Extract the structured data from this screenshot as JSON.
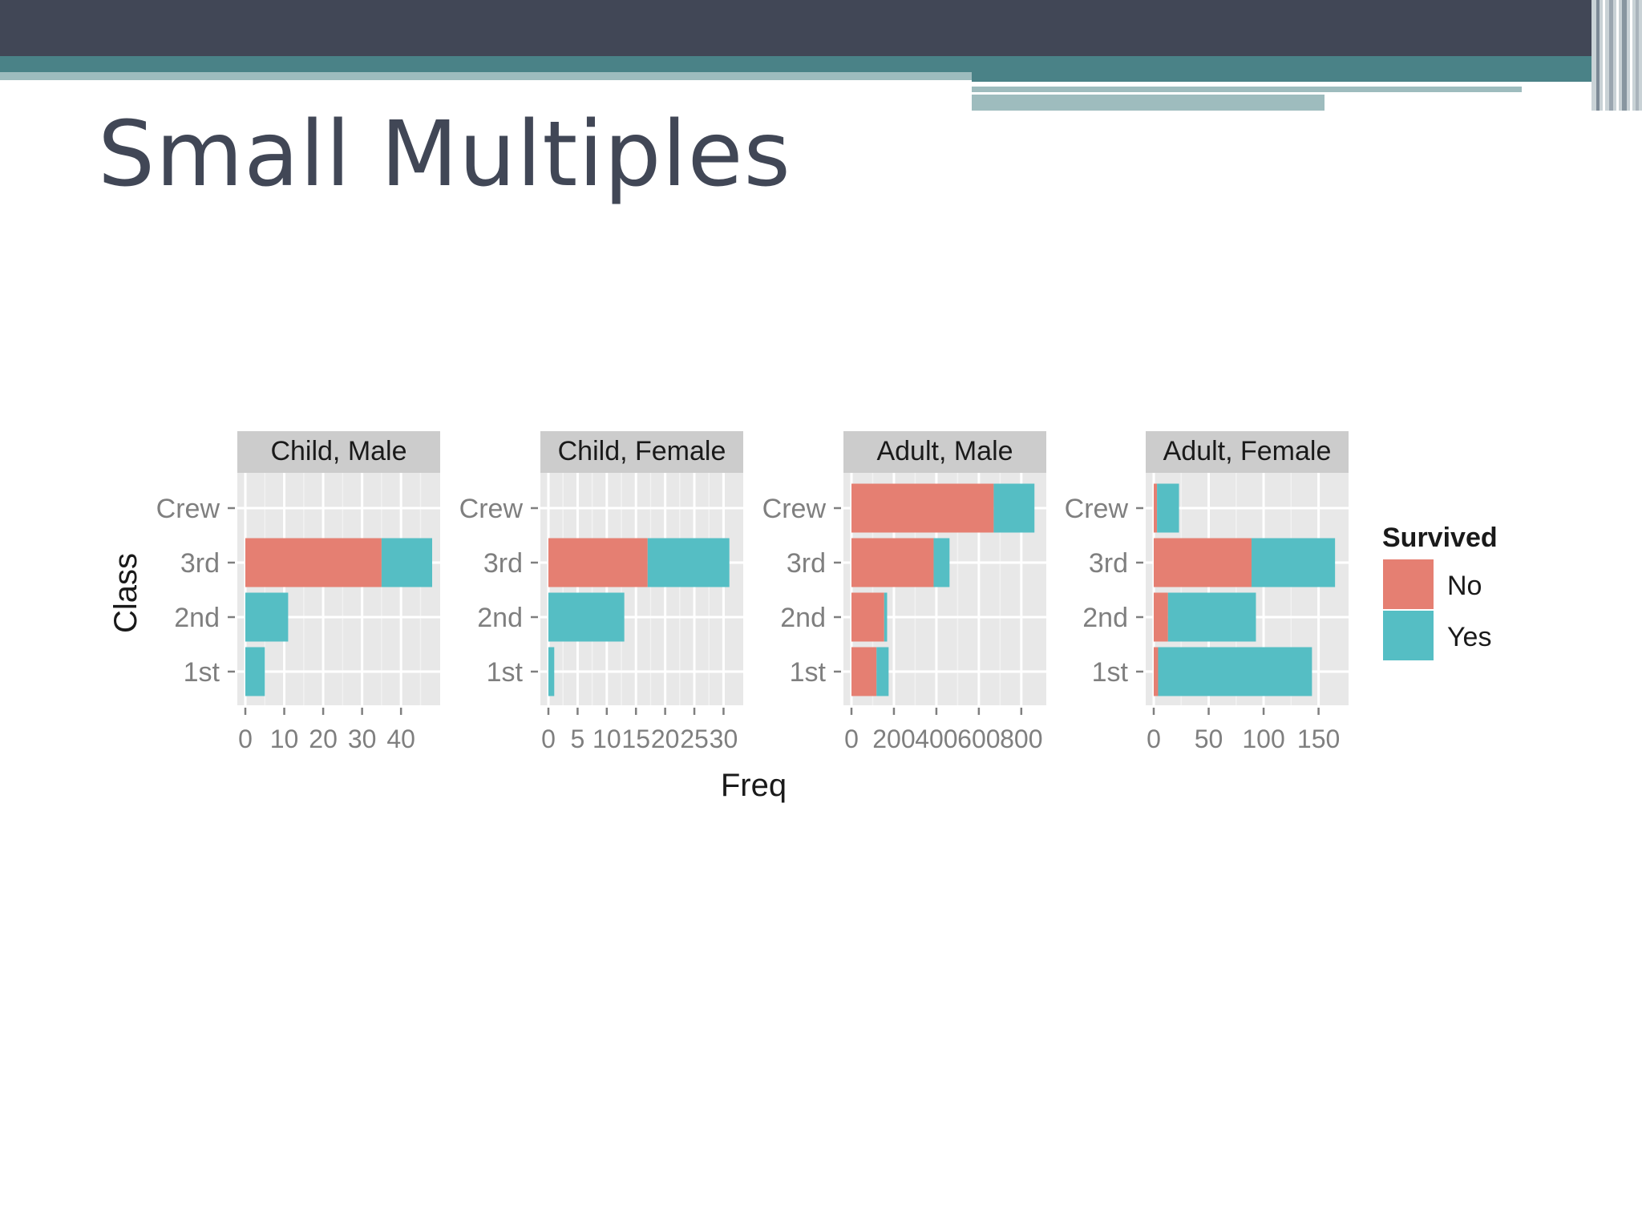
{
  "slide": {
    "title": "Small Multiples"
  },
  "colors": {
    "no": "#e57f72",
    "yes": "#55bec4",
    "panel": "#e8e8e8",
    "strip": "#cccccc",
    "header": "#414756",
    "accent": "#4a8287"
  },
  "chart_data": {
    "type": "bar",
    "orientation": "horizontal",
    "stacked": true,
    "xlabel": "Freq",
    "ylabel": "Class",
    "categories": [
      "1st",
      "2nd",
      "3rd",
      "Crew"
    ],
    "legend": {
      "title": "Survived",
      "position": "right",
      "entries": [
        "No",
        "Yes"
      ]
    },
    "grid": true,
    "panels": [
      {
        "title": "Child, Male",
        "xlim": [
          0,
          48
        ],
        "ticks": [
          0,
          10,
          20,
          30,
          40
        ],
        "tick_labels": [
          "0",
          "10",
          "20",
          "30",
          "40"
        ],
        "series": [
          {
            "name": "No",
            "values": [
              0,
              0,
              35,
              0
            ]
          },
          {
            "name": "Yes",
            "values": [
              5,
              11,
              13,
              0
            ]
          }
        ]
      },
      {
        "title": "Child, Female",
        "xlim": [
          0,
          32
        ],
        "ticks": [
          0,
          5,
          10,
          15,
          20,
          25,
          30
        ],
        "tick_labels": [
          "0",
          "5",
          "10",
          "15",
          "20",
          "25",
          "30"
        ],
        "series": [
          {
            "name": "No",
            "values": [
              0,
              0,
              17,
              0
            ]
          },
          {
            "name": "Yes",
            "values": [
              1,
              13,
              14,
              0
            ]
          }
        ]
      },
      {
        "title": "Adult, Male",
        "xlim": [
          0,
          880
        ],
        "ticks": [
          0,
          200,
          400,
          600,
          800
        ],
        "tick_labels": [
          "0",
          "200",
          "400",
          "600",
          "800"
        ],
        "series": [
          {
            "name": "No",
            "values": [
              118,
              154,
              387,
              670
            ]
          },
          {
            "name": "Yes",
            "values": [
              57,
              14,
              75,
              192
            ]
          }
        ]
      },
      {
        "title": "Adult, Female",
        "xlim": [
          0,
          170
        ],
        "ticks": [
          0,
          50,
          100,
          150
        ],
        "tick_labels": [
          "0",
          "50",
          "100",
          "150"
        ],
        "series": [
          {
            "name": "No",
            "values": [
              4,
              13,
              89,
              3
            ]
          },
          {
            "name": "Yes",
            "values": [
              140,
              80,
              76,
              20
            ]
          }
        ]
      }
    ]
  }
}
